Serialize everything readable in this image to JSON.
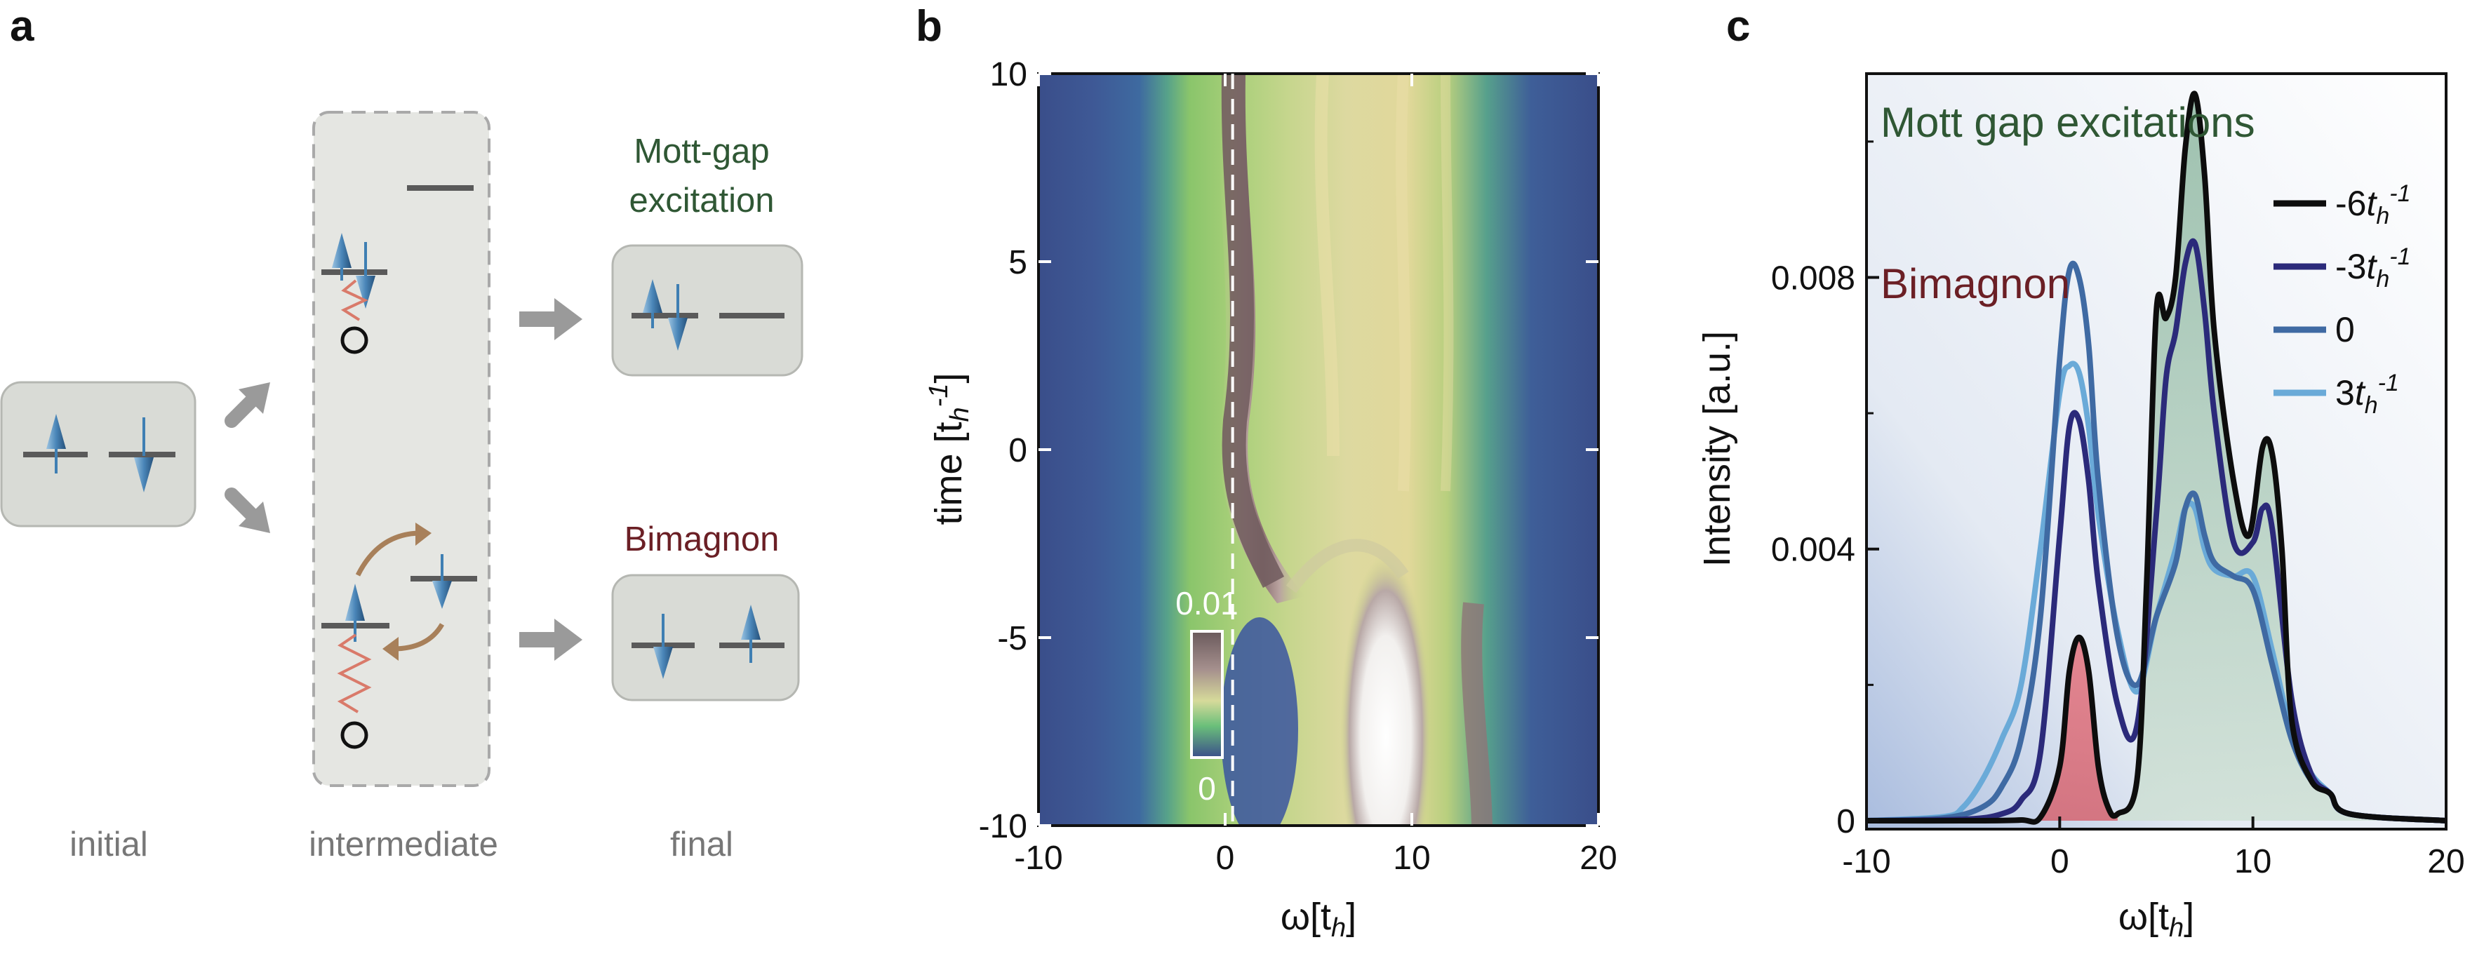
{
  "panels": {
    "a": {
      "letter": "a",
      "stage_labels": {
        "initial": "initial",
        "intermediate": "intermediate",
        "final": "final"
      },
      "mott_label": [
        "Mott-gap",
        "excitation"
      ],
      "bimagnon_label": "Bimagnon",
      "colors": {
        "mott": "#2f5734",
        "bimagnon": "#6b1f25",
        "box": "#d9dbd6",
        "arrow": "#9a9a9a",
        "spin": "#3f7fb3",
        "level": "#5a5a5a",
        "hop": "#a8805a",
        "zigzag": "#d97a6a"
      }
    },
    "b": {
      "letter": "b",
      "xlabel_main": "ω[t",
      "xlabel_sub": "h",
      "xlabel_end": "]",
      "ylabel_main": "time [t",
      "ylabel_sub": "h",
      "ylabel_sup": "-1",
      "ylabel_end": "]",
      "colorbar_max": "0.01",
      "colorbar_min": "0"
    },
    "c": {
      "letter": "c",
      "mott_title": "Mott gap excitations",
      "bimagnon_title": "Bimagnon",
      "ylabel": "Intensity [a.u.]",
      "xlabel_main": "ω[t",
      "xlabel_sub": "h",
      "xlabel_end": "]"
    }
  },
  "chart_data": [
    {
      "type": "heatmap",
      "panel": "b",
      "xlim": [
        -10,
        20
      ],
      "ylim": [
        -10,
        10
      ],
      "xticks": [
        "-10",
        "0",
        "10",
        "20"
      ],
      "yticks": [
        "10",
        "5",
        "0",
        "-5",
        "-10"
      ],
      "xlabel": "ω[th]",
      "ylabel": "time [th-1]",
      "colorbar": {
        "min": 0,
        "max": 0.01
      },
      "dashed_line_x": 0.4
    },
    {
      "type": "line",
      "panel": "c",
      "xlim": [
        -10,
        20
      ],
      "ylim": [
        0,
        0.011
      ],
      "xticks": [
        "-10",
        "0",
        "10",
        "20"
      ],
      "yticks": [
        "0",
        "0.004",
        "0.008"
      ],
      "xlabel": "ω[th]",
      "ylabel": "Intensity [a.u.]",
      "legend_placement": "top-right",
      "series": [
        {
          "name": "-6",
          "label_sub": "h",
          "label_sup": "-1",
          "color": "#0d0d0d",
          "x": [
            -10,
            -4,
            -2,
            -1,
            0,
            0.5,
            1,
            1.5,
            2,
            2.5,
            3,
            4,
            4.5,
            5,
            5.5,
            6,
            6.5,
            7,
            7.5,
            8,
            9,
            9.8,
            10.5,
            11,
            11.5,
            12,
            13,
            14,
            15,
            20
          ],
          "y": [
            0,
            0,
            1e-05,
            5e-05,
            0.0008,
            0.0022,
            0.0027,
            0.0022,
            0.0008,
            0.0002,
            0.0001,
            0.0006,
            0.0035,
            0.0075,
            0.0074,
            0.008,
            0.0099,
            0.0107,
            0.0095,
            0.0072,
            0.005,
            0.0042,
            0.0055,
            0.0054,
            0.004,
            0.0015,
            0.0006,
            0.0004,
            0.0001,
            0
          ]
        },
        {
          "name": "-3",
          "label_sub": "h",
          "label_sup": "-1",
          "color": "#2b2a7a",
          "x": [
            -10,
            -5,
            -3,
            -2,
            -1,
            0,
            0.5,
            1,
            1.5,
            2,
            3,
            4,
            5,
            5.5,
            6,
            6.5,
            7,
            7.5,
            8,
            9,
            10,
            10.5,
            11,
            12,
            13,
            14,
            15,
            20
          ],
          "y": [
            0,
            2e-05,
            0.0001,
            0.0003,
            0.001,
            0.0042,
            0.0058,
            0.0059,
            0.005,
            0.0035,
            0.0017,
            0.0014,
            0.0045,
            0.0065,
            0.0072,
            0.0082,
            0.0085,
            0.0075,
            0.006,
            0.0041,
            0.0041,
            0.0046,
            0.0043,
            0.0018,
            0.0007,
            0.0004,
            0.0001,
            0
          ]
        },
        {
          "name": "0",
          "label_sub": "",
          "label_sup": "",
          "color": "#3f6aa3",
          "x": [
            -10,
            -6,
            -4,
            -3,
            -2,
            -1,
            0,
            0.5,
            1,
            1.5,
            2,
            3,
            4,
            5,
            6,
            6.5,
            7,
            7.5,
            8,
            9,
            10,
            11,
            12,
            13,
            14,
            15,
            20
          ],
          "y": [
            0,
            4e-05,
            0.0002,
            0.0005,
            0.0012,
            0.003,
            0.0068,
            0.0081,
            0.008,
            0.007,
            0.005,
            0.0027,
            0.002,
            0.003,
            0.0038,
            0.0046,
            0.0048,
            0.0042,
            0.0038,
            0.0036,
            0.0034,
            0.0023,
            0.0012,
            0.0006,
            0.0004,
            0.0001,
            0
          ]
        },
        {
          "name": "3",
          "label_sub": "h",
          "label_sup": "-1",
          "color": "#6aaad8",
          "x": [
            -10,
            -6,
            -5,
            -4,
            -3,
            -2,
            -1,
            0,
            0.5,
            1,
            1.5,
            2,
            3,
            4,
            5,
            6,
            6.5,
            7,
            7.5,
            8,
            9,
            10,
            11,
            12,
            13,
            14,
            15,
            20
          ],
          "y": [
            0,
            6e-05,
            0.0002,
            0.0006,
            0.0012,
            0.002,
            0.004,
            0.0063,
            0.0067,
            0.0066,
            0.0058,
            0.0045,
            0.0028,
            0.0019,
            0.003,
            0.004,
            0.0046,
            0.0046,
            0.004,
            0.0037,
            0.0036,
            0.0036,
            0.0025,
            0.0013,
            0.0007,
            0.0004,
            0.0001,
            0
          ]
        }
      ]
    }
  ]
}
